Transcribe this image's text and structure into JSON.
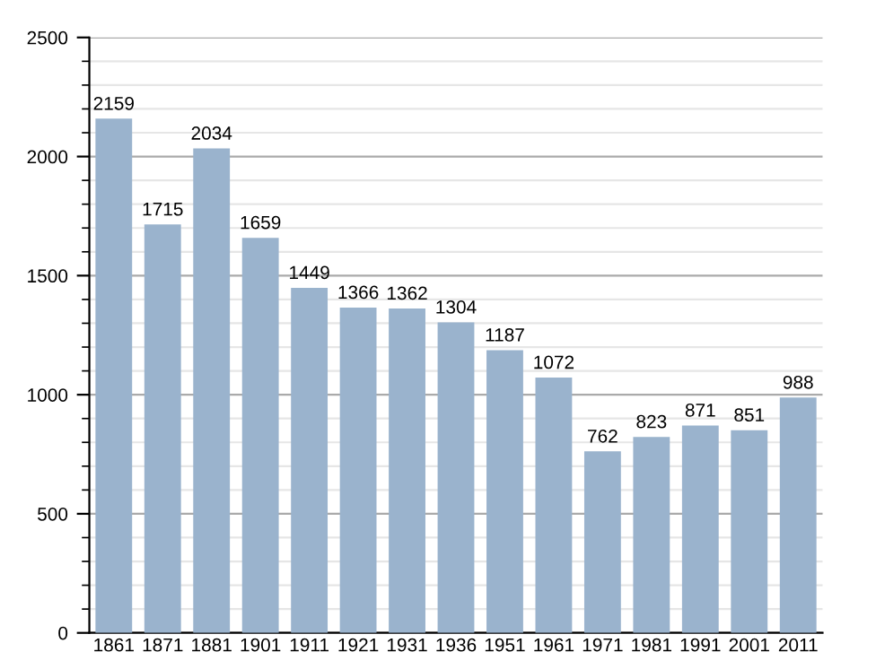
{
  "chart_data": {
    "type": "bar",
    "categories": [
      "1861",
      "1871",
      "1881",
      "1901",
      "1911",
      "1921",
      "1931",
      "1936",
      "1951",
      "1961",
      "1971",
      "1981",
      "1991",
      "2001",
      "2011"
    ],
    "values": [
      2159,
      1715,
      2034,
      1659,
      1449,
      1366,
      1362,
      1304,
      1187,
      1072,
      762,
      823,
      871,
      851,
      988
    ],
    "color": "#9ab3cd",
    "ylim": [
      0,
      2500
    ],
    "yticks": [
      0,
      500,
      1000,
      1500,
      2000,
      2500
    ],
    "grid": "y",
    "data_labels": true
  }
}
